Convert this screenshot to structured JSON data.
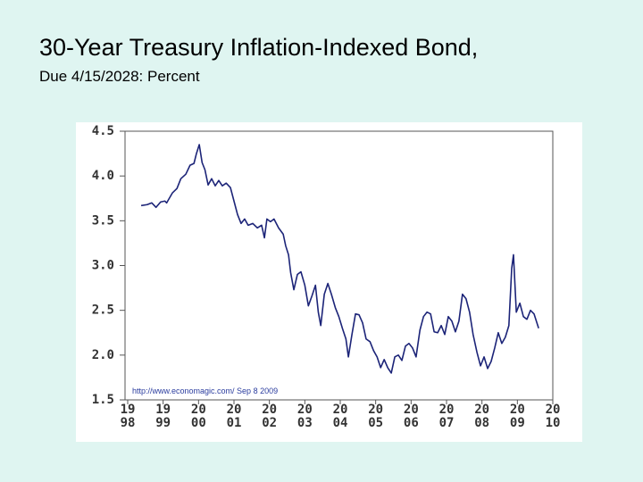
{
  "title": "30-Year Treasury Inflation-Indexed Bond,",
  "subtitle": "Due 4/15/2028: Percent",
  "chart_data": {
    "type": "line",
    "source": "http://www.economagic.com/   Sep 8 2009",
    "color": "#1c2478",
    "grid": false,
    "xlim": [
      1998,
      2010
    ],
    "ylim": [
      1.5,
      4.5
    ],
    "yticks": [
      4.5,
      {
        "value": 4.0,
        "label": "4.0"
      },
      3.5,
      {
        "value": 3.0,
        "label": "3.0"
      },
      2.5,
      {
        "value": 2.0,
        "label": "2.0"
      },
      1.5
    ],
    "xticks": [
      {
        "value": 1998,
        "label": "19\n98"
      },
      {
        "value": 1999,
        "label": "19\n99"
      },
      {
        "value": 2000,
        "label": "20\n00"
      },
      {
        "value": 2001,
        "label": "20\n01"
      },
      {
        "value": 2002,
        "label": "20\n02"
      },
      {
        "value": 2003,
        "label": "20\n03"
      },
      {
        "value": 2004,
        "label": "20\n04"
      },
      {
        "value": 2005,
        "label": "20\n05"
      },
      {
        "value": 2006,
        "label": "20\n06"
      },
      {
        "value": 2007,
        "label": "20\n07"
      },
      {
        "value": 2008,
        "label": "20\n08"
      },
      {
        "value": 2009,
        "label": "20\n09"
      },
      {
        "value": 2010,
        "label": "20\n10"
      }
    ],
    "x": [
      1998.38,
      1998.55,
      1998.68,
      1998.8,
      1998.93,
      1999.05,
      1999.1,
      1999.26,
      1999.39,
      1999.5,
      1999.64,
      1999.76,
      1999.87,
      1999.94,
      2000.02,
      2000.1,
      2000.18,
      2000.27,
      2000.37,
      2000.47,
      2000.57,
      2000.67,
      2000.78,
      2000.9,
      2001.0,
      2001.1,
      2001.2,
      2001.3,
      2001.4,
      2001.53,
      2001.66,
      2001.78,
      2001.86,
      2001.93,
      2002.03,
      2002.13,
      2002.26,
      2002.39,
      2002.46,
      2002.54,
      2002.6,
      2002.69,
      2002.79,
      2002.89,
      2003.0,
      2003.1,
      2003.2,
      2003.3,
      2003.38,
      2003.45,
      2003.55,
      2003.65,
      2003.75,
      2003.86,
      2003.96,
      2004.06,
      2004.16,
      2004.23,
      2004.33,
      2004.43,
      2004.53,
      2004.63,
      2004.73,
      2004.84,
      2004.94,
      2005.04,
      2005.14,
      2005.24,
      2005.34,
      2005.44,
      2005.54,
      2005.64,
      2005.74,
      2005.84,
      2005.94,
      2006.04,
      2006.14,
      2006.25,
      2006.35,
      2006.45,
      2006.55,
      2006.65,
      2006.75,
      2006.85,
      2006.95,
      2007.05,
      2007.15,
      2007.25,
      2007.35,
      2007.45,
      2007.55,
      2007.65,
      2007.75,
      2007.86,
      2007.96,
      2008.06,
      2008.16,
      2008.26,
      2008.36,
      2008.46,
      2008.56,
      2008.66,
      2008.76,
      2008.84,
      2008.89,
      2008.97,
      2009.07,
      2009.17,
      2009.27,
      2009.37,
      2009.47,
      2009.6
    ],
    "values": [
      3.67,
      3.68,
      3.7,
      3.65,
      3.71,
      3.72,
      3.7,
      3.81,
      3.86,
      3.97,
      4.02,
      4.12,
      4.14,
      4.25,
      4.35,
      4.15,
      4.07,
      3.9,
      3.97,
      3.89,
      3.95,
      3.89,
      3.92,
      3.87,
      3.72,
      3.57,
      3.47,
      3.52,
      3.45,
      3.47,
      3.42,
      3.45,
      3.31,
      3.52,
      3.49,
      3.52,
      3.42,
      3.35,
      3.22,
      3.12,
      2.92,
      2.73,
      2.9,
      2.93,
      2.78,
      2.55,
      2.66,
      2.78,
      2.48,
      2.33,
      2.68,
      2.8,
      2.68,
      2.53,
      2.43,
      2.3,
      2.18,
      1.98,
      2.23,
      2.46,
      2.45,
      2.36,
      2.18,
      2.15,
      2.05,
      1.98,
      1.86,
      1.95,
      1.86,
      1.8,
      1.98,
      2.0,
      1.94,
      2.1,
      2.13,
      2.08,
      1.98,
      2.28,
      2.43,
      2.48,
      2.46,
      2.26,
      2.25,
      2.33,
      2.23,
      2.43,
      2.38,
      2.26,
      2.38,
      2.68,
      2.63,
      2.48,
      2.23,
      2.03,
      1.88,
      1.98,
      1.85,
      1.93,
      2.08,
      2.25,
      2.13,
      2.2,
      2.33,
      2.97,
      3.12,
      2.48,
      2.58,
      2.43,
      2.4,
      2.5,
      2.46,
      2.3
    ]
  }
}
